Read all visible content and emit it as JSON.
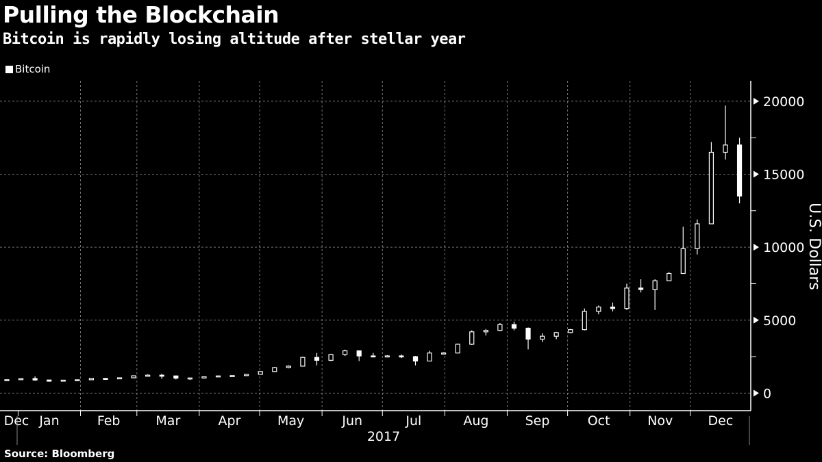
{
  "chart_data": {
    "type": "candlestick",
    "title": "Pulling the Blockchain",
    "subtitle": "Bitcoin is rapidly losing altitude after stellar year",
    "ylabel": "U.S. Dollars",
    "xlabel": "2017",
    "legend": {
      "entries": [
        "Bitcoin"
      ],
      "placement": "top-left"
    },
    "source": "Source: Bloomberg",
    "grid": true,
    "ylim": [
      -1200,
      21400
    ],
    "yticks": [
      0,
      5000,
      10000,
      15000,
      20000
    ],
    "ytick_labels": [
      "0",
      "5000",
      "10000",
      "15000",
      "20000"
    ],
    "xlim": [
      "2016-12-23",
      "2017-12-31"
    ],
    "month_labels": [
      "Dec",
      "Jan",
      "Feb",
      "Mar",
      "Apr",
      "May",
      "Jun",
      "Jul",
      "Aug",
      "Sep",
      "Oct",
      "Nov",
      "Dec"
    ],
    "colors": {
      "background": "#000000",
      "candle": "#ffffff",
      "grid": "#777777"
    },
    "series": [
      {
        "name": "Bitcoin",
        "ohlc": [
          [
            "2016-12-23",
            860,
            940,
            850,
            920
          ],
          [
            "2016-12-30",
            920,
            1020,
            900,
            1000
          ],
          [
            "2017-01-06",
            1000,
            1150,
            850,
            900
          ],
          [
            "2017-01-13",
            900,
            920,
            780,
            820
          ],
          [
            "2017-01-20",
            820,
            900,
            800,
            890
          ],
          [
            "2017-01-27",
            890,
            920,
            880,
            915
          ],
          [
            "2017-02-03",
            915,
            1030,
            910,
            1010
          ],
          [
            "2017-02-10",
            1010,
            1020,
            950,
            1000
          ],
          [
            "2017-02-17",
            1000,
            1060,
            990,
            1050
          ],
          [
            "2017-02-24",
            1050,
            1200,
            1050,
            1190
          ],
          [
            "2017-03-03",
            1190,
            1290,
            1180,
            1230
          ],
          [
            "2017-03-10",
            1230,
            1330,
            980,
            1180
          ],
          [
            "2017-03-17",
            1180,
            1200,
            940,
            1030
          ],
          [
            "2017-03-24",
            1030,
            1050,
            900,
            1040
          ],
          [
            "2017-03-31",
            1040,
            1130,
            1020,
            1120
          ],
          [
            "2017-04-07",
            1120,
            1210,
            1110,
            1180
          ],
          [
            "2017-04-14",
            1180,
            1220,
            1160,
            1200
          ],
          [
            "2017-04-21",
            1200,
            1300,
            1190,
            1290
          ],
          [
            "2017-04-28",
            1290,
            1500,
            1280,
            1480
          ],
          [
            "2017-05-05",
            1480,
            1800,
            1450,
            1750
          ],
          [
            "2017-05-12",
            1750,
            1900,
            1700,
            1850
          ],
          [
            "2017-05-19",
            1850,
            2500,
            1850,
            2450
          ],
          [
            "2017-05-26",
            2450,
            2750,
            1900,
            2250
          ],
          [
            "2017-06-02",
            2250,
            2700,
            2200,
            2650
          ],
          [
            "2017-06-09",
            2650,
            2980,
            2550,
            2900
          ],
          [
            "2017-06-16",
            2900,
            2900,
            2200,
            2550
          ],
          [
            "2017-06-23",
            2550,
            2750,
            2450,
            2500
          ],
          [
            "2017-06-30",
            2500,
            2600,
            2450,
            2550
          ],
          [
            "2017-07-07",
            2550,
            2650,
            2400,
            2500
          ],
          [
            "2017-07-14",
            2500,
            2550,
            1900,
            2200
          ],
          [
            "2017-07-21",
            2200,
            2900,
            2200,
            2750
          ],
          [
            "2017-07-28",
            2750,
            2800,
            2650,
            2750
          ],
          [
            "2017-08-04",
            2750,
            3400,
            2750,
            3350
          ],
          [
            "2017-08-11",
            3350,
            4300,
            3300,
            4200
          ],
          [
            "2017-08-18",
            4200,
            4400,
            3950,
            4300
          ],
          [
            "2017-08-25",
            4300,
            4800,
            4250,
            4700
          ],
          [
            "2017-09-01",
            4700,
            4900,
            4300,
            4450
          ],
          [
            "2017-09-08",
            4450,
            4500,
            3000,
            3700
          ],
          [
            "2017-09-15",
            3700,
            4100,
            3500,
            3900
          ],
          [
            "2017-09-22",
            3900,
            4200,
            3700,
            4150
          ],
          [
            "2017-09-29",
            4150,
            4400,
            4100,
            4350
          ],
          [
            "2017-10-06",
            4350,
            5800,
            4300,
            5600
          ],
          [
            "2017-10-13",
            5600,
            6000,
            5400,
            5900
          ],
          [
            "2017-10-20",
            5900,
            6200,
            5600,
            5800
          ],
          [
            "2017-10-27",
            5800,
            7500,
            5700,
            7200
          ],
          [
            "2017-11-03",
            7200,
            7800,
            6900,
            7100
          ],
          [
            "2017-11-10",
            7100,
            7800,
            5700,
            7700
          ],
          [
            "2017-11-17",
            7700,
            8300,
            7700,
            8200
          ],
          [
            "2017-11-24",
            8200,
            11400,
            8200,
            9900
          ],
          [
            "2017-12-01",
            9900,
            11900,
            9500,
            11600
          ],
          [
            "2017-12-08",
            11600,
            17200,
            11600,
            16500
          ],
          [
            "2017-12-15",
            16500,
            19700,
            16000,
            17000
          ],
          [
            "2017-12-22",
            17000,
            17500,
            13000,
            13500
          ]
        ]
      }
    ]
  }
}
